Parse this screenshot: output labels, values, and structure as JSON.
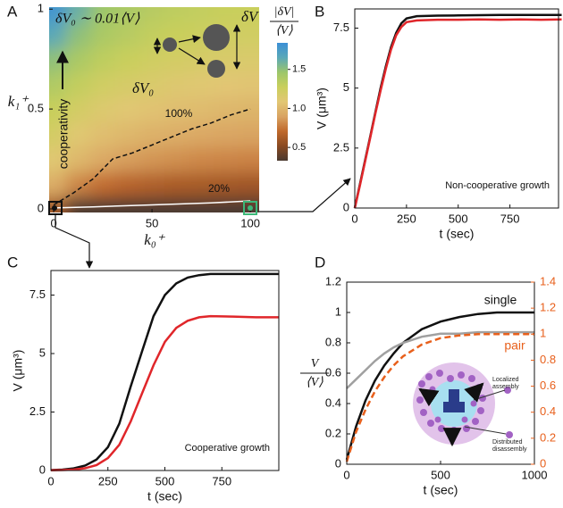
{
  "chart_data": [
    {
      "type": "heatmap",
      "panel": "A",
      "x": [
        0,
        12.5,
        25,
        37.5,
        50,
        62.5,
        75,
        87.5,
        100
      ],
      "y": [
        0,
        0.125,
        0.25,
        0.375,
        0.5,
        0.625,
        0.75,
        0.875,
        1
      ],
      "z": [
        [
          0.6,
          0.3,
          0.28,
          0.27,
          0.26,
          0.26,
          0.25,
          0.25,
          0.25
        ],
        [
          0.95,
          0.8,
          0.72,
          0.68,
          0.65,
          0.63,
          0.62,
          0.61,
          0.6
        ],
        [
          1.1,
          1.0,
          0.93,
          0.88,
          0.85,
          0.83,
          0.81,
          0.8,
          0.79
        ],
        [
          1.2,
          1.1,
          1.04,
          1.0,
          0.97,
          0.95,
          0.93,
          0.91,
          0.9
        ],
        [
          1.28,
          1.2,
          1.13,
          1.09,
          1.06,
          1.04,
          1.02,
          1.0,
          0.99
        ],
        [
          1.38,
          1.3,
          1.22,
          1.18,
          1.15,
          1.12,
          1.1,
          1.08,
          1.07
        ],
        [
          1.5,
          1.4,
          1.32,
          1.27,
          1.23,
          1.2,
          1.18,
          1.16,
          1.15
        ],
        [
          1.65,
          1.5,
          1.4,
          1.35,
          1.3,
          1.27,
          1.25,
          1.23,
          1.22
        ],
        [
          1.8,
          1.6,
          1.45,
          1.4,
          1.35,
          1.32,
          1.3,
          1.28,
          1.27
        ]
      ],
      "xlim": [
        -2.3,
        104.5
      ],
      "ylim": [
        -0.018,
        1.01
      ],
      "xticks": [
        0,
        50,
        100
      ],
      "yticks": [
        0,
        0.5,
        1
      ],
      "xlabel": "k₀⁺",
      "ylabel": "k₁⁺",
      "clim": [
        0.33,
        1.84
      ],
      "colormap": [
        "#4a3a30",
        "#8a4a22",
        "#c0692c",
        "#d9a362",
        "#e2c774",
        "#c9cf5c",
        "#9cc66a",
        "#5aa8b8",
        "#3b8fd6"
      ],
      "cticks": [
        1.5,
        {
          "value": 1,
          "label": "1.0"
        },
        0.5
      ],
      "colorbar_label": {
        "numerator": "|δV|",
        "denominator": "⟨V⟩"
      },
      "contours": [
        {
          "label": "100%",
          "color": "#111111",
          "dashed": true,
          "x": [
            0,
            10,
            20,
            30,
            40,
            50,
            60,
            70,
            80,
            90,
            100
          ],
          "y": [
            0.02,
            0.08,
            0.15,
            0.25,
            0.28,
            0.32,
            0.36,
            0.4,
            0.43,
            0.47,
            0.5
          ]
        },
        {
          "label": "20%",
          "color": "#ffffff",
          "dashed": false,
          "x": [
            0,
            20,
            50,
            80,
            100
          ],
          "y": [
            0.005,
            0.01,
            0.02,
            0.03,
            0.04
          ]
        }
      ],
      "annotations": {
        "condition": "δV₀ ∼ 0.01⟨V⟩",
        "arrow": "cooperativity",
        "large": "δV",
        "small": "δV₀"
      }
    },
    {
      "type": "line",
      "panel": "B",
      "x": [
        0,
        25,
        50,
        75,
        100,
        125,
        150,
        175,
        200,
        225,
        250,
        300,
        400,
        500,
        600,
        700,
        800,
        900,
        1000
      ],
      "series": [
        {
          "color": "#111111",
          "values": [
            0,
            1.0,
            2.0,
            3.0,
            4.0,
            5.0,
            5.9,
            6.7,
            7.3,
            7.7,
            7.9,
            8.0,
            8.02,
            8.03,
            8.04,
            8.05,
            8.05,
            8.05,
            8.05
          ]
        },
        {
          "color": "#e0262a",
          "values": [
            0,
            0.95,
            1.95,
            2.95,
            3.95,
            4.9,
            5.8,
            6.6,
            7.2,
            7.55,
            7.75,
            7.82,
            7.85,
            7.85,
            7.86,
            7.85,
            7.86,
            7.85,
            7.86
          ]
        }
      ],
      "xlim": [
        0,
        985
      ],
      "ylim": [
        0,
        8.3
      ],
      "xticks": [
        0,
        250,
        500,
        750
      ],
      "yticks": [
        0,
        2.5,
        5,
        7.5
      ],
      "xlabel": "t (sec)",
      "ylabel": "V (μm³)",
      "annotation": "Non-cooperative growth"
    },
    {
      "type": "line",
      "panel": "C",
      "x": [
        0,
        50,
        100,
        150,
        200,
        250,
        300,
        350,
        400,
        450,
        500,
        550,
        600,
        650,
        700,
        800,
        900,
        1000
      ],
      "series": [
        {
          "color": "#111111",
          "values": [
            0.02,
            0.04,
            0.09,
            0.21,
            0.47,
            1.0,
            2.0,
            3.6,
            5.1,
            6.6,
            7.5,
            8.0,
            8.25,
            8.35,
            8.4,
            8.4,
            8.4,
            8.4
          ]
        },
        {
          "color": "#e0262a",
          "values": [
            0.01,
            0.02,
            0.04,
            0.1,
            0.23,
            0.53,
            1.1,
            2.1,
            3.3,
            4.5,
            5.5,
            6.1,
            6.4,
            6.55,
            6.6,
            6.58,
            6.55,
            6.55
          ]
        }
      ],
      "xlim": [
        0,
        1000
      ],
      "ylim": [
        0,
        8.55
      ],
      "xticks": [
        0,
        250,
        500,
        750
      ],
      "yticks": [
        0,
        2.5,
        5,
        7.5
      ],
      "xlabel": "t (sec)",
      "ylabel": "V (μm³)",
      "annotation": "Cooperative growth"
    },
    {
      "type": "line",
      "panel": "D",
      "x": [
        0,
        50,
        100,
        150,
        200,
        250,
        300,
        400,
        500,
        600,
        700,
        800,
        900,
        1000
      ],
      "series": [
        {
          "name": "single",
          "color": "#111111",
          "values": [
            0.03,
            0.25,
            0.42,
            0.55,
            0.65,
            0.73,
            0.8,
            0.89,
            0.94,
            0.97,
            0.99,
            1.0,
            1.0,
            1.0
          ]
        },
        {
          "color": "#a0a0a0",
          "values": [
            0.5,
            0.56,
            0.62,
            0.68,
            0.73,
            0.77,
            0.8,
            0.84,
            0.86,
            0.86,
            0.87,
            0.87,
            0.87,
            0.87
          ]
        },
        {
          "name": "pair",
          "color": "#e8601c",
          "dashed": true,
          "axis": "y2",
          "values": [
            0.02,
            0.25,
            0.42,
            0.56,
            0.67,
            0.76,
            0.83,
            0.92,
            0.97,
            0.99,
            1.0,
            1.0,
            1.0,
            1.0
          ]
        }
      ],
      "xlim": [
        0,
        1000
      ],
      "ylim": [
        0,
        1.2
      ],
      "y2lim": [
        0,
        1.4
      ],
      "xticks": [
        0,
        500,
        1000
      ],
      "yticks": [
        0,
        0.2,
        0.4,
        0.6,
        0.8,
        1,
        1.2
      ],
      "y2ticks": [
        0,
        0.2,
        0.4,
        0.6,
        0.8,
        1,
        1.2,
        1.4
      ],
      "y2color": "#e8601c",
      "xlabel": "t (sec)",
      "ylabel": {
        "numerator": "V",
        "denominator": "⟨V⟩"
      },
      "inset": {
        "top": "Localized assembly",
        "bottom": "Distributed disassembly"
      }
    }
  ]
}
